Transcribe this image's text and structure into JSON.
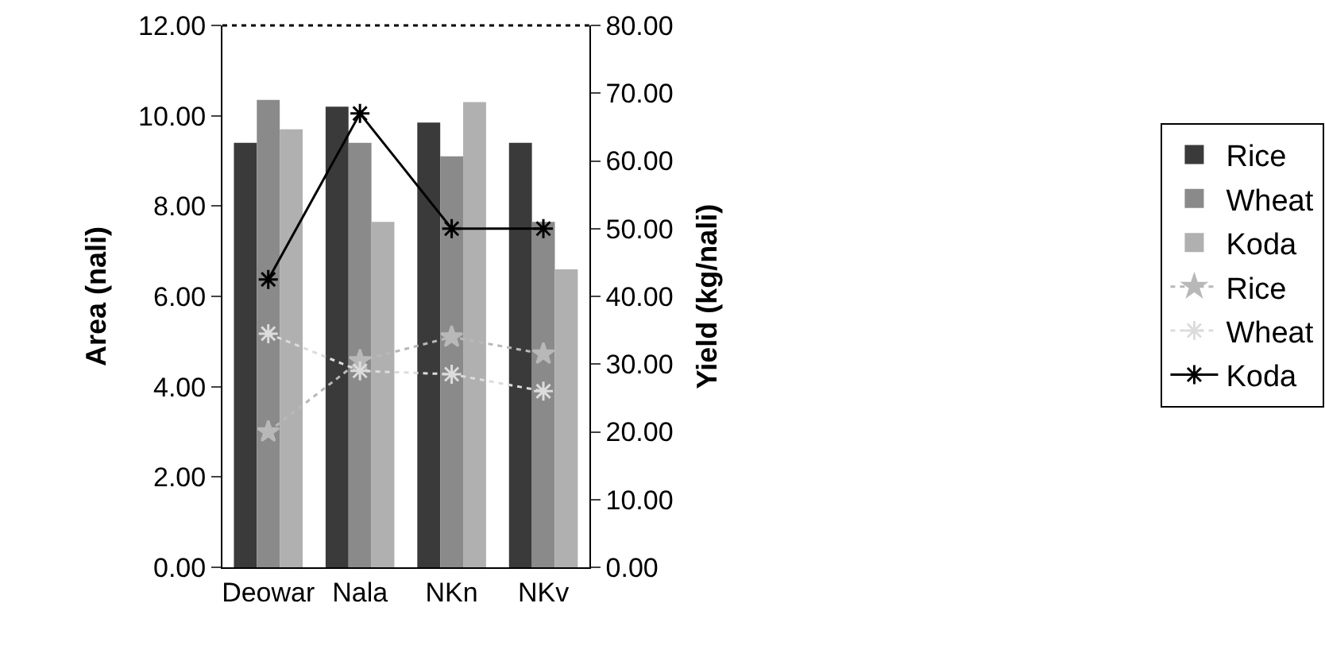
{
  "chart_data": {
    "type": "bar",
    "categories": [
      "Deowar",
      "Nala",
      "NKn",
      "NKv"
    ],
    "ylabel": "Area (nali)",
    "y2label": "Yield (kg/nali)",
    "ylim": [
      0,
      12
    ],
    "yticks": [
      {
        "value": 0,
        "label": "0.00"
      },
      {
        "value": 2,
        "label": "2.00"
      },
      {
        "value": 4,
        "label": "4.00"
      },
      {
        "value": 6,
        "label": "6.00"
      },
      {
        "value": 8,
        "label": "8.00"
      },
      {
        "value": 10,
        "label": "10.00"
      },
      {
        "value": 12,
        "label": "12.00"
      }
    ],
    "y2lim": [
      0,
      80
    ],
    "y2ticks": [
      {
        "value": 0,
        "label": "0.00"
      },
      {
        "value": 10,
        "label": "10.00"
      },
      {
        "value": 20,
        "label": "20.00"
      },
      {
        "value": 30,
        "label": "30.00"
      },
      {
        "value": 40,
        "label": "40.00"
      },
      {
        "value": 50,
        "label": "50.00"
      },
      {
        "value": 60,
        "label": "60.00"
      },
      {
        "value": 70,
        "label": "70.00"
      },
      {
        "value": 80,
        "label": "80.00"
      }
    ],
    "legend": "right",
    "series": [
      {
        "name": "Rice",
        "color": "#3a3a3a",
        "values": [
          9.4,
          10.2,
          9.85,
          9.4
        ]
      },
      {
        "name": "Wheat",
        "color": "#8a8a8a",
        "values": [
          10.35,
          9.4,
          9.1,
          7.65
        ]
      },
      {
        "name": "Koda",
        "color": "#b0b0b0",
        "values": [
          9.7,
          7.65,
          10.3,
          6.6
        ]
      },
      {
        "name": "Rice",
        "type": "line",
        "axis": "y2",
        "color": "#b8b8b8",
        "line_style": "dotted",
        "marker": "star",
        "values": [
          20,
          30.5,
          34,
          31.5
        ]
      },
      {
        "name": "Wheat",
        "type": "line",
        "axis": "y2",
        "color": "#dcdcdc",
        "line_style": "dotted",
        "marker": "cross",
        "values": [
          34.5,
          29,
          28.5,
          26
        ]
      },
      {
        "name": "Koda",
        "type": "line",
        "axis": "y2",
        "color": "#000000",
        "line_style": "solid",
        "marker": "cross",
        "values": [
          42.5,
          67,
          50,
          50
        ]
      }
    ]
  }
}
